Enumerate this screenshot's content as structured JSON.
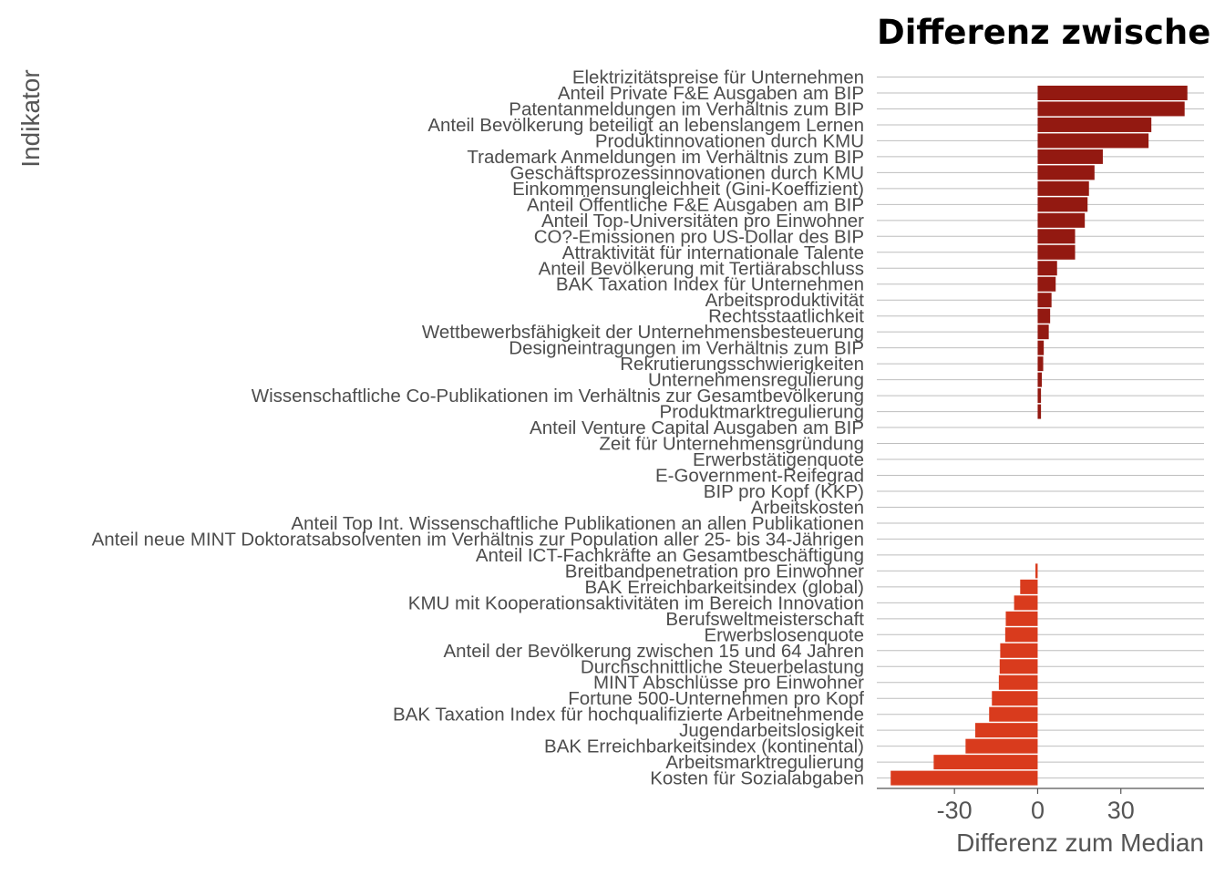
{
  "chart_data": {
    "type": "bar",
    "orientation": "horizontal",
    "title": "Differenz zwische",
    "xlabel": "Differenz zum Median",
    "ylabel": "Indikator",
    "xlim": [
      -58,
      60
    ],
    "xticks": [
      -30,
      0,
      30
    ],
    "xtick_labels": [
      "-30",
      "0",
      "30"
    ],
    "grid": "horizontal lines per category",
    "legend": "none",
    "colors": {
      "positive": "#931911",
      "negative": "#D93B1D",
      "grid": "#BEBEBE",
      "axis": "#555555",
      "label": "#4D4D4D"
    },
    "categories": [
      "Elektrizitätspreise für Unternehmen",
      "Anteil Private F&E Ausgaben am BIP",
      "Patentanmeldungen im Verhältnis zum BIP",
      "Anteil Bevölkerung beteiligt an lebenslangem Lernen",
      "Produktinnovationen durch KMU",
      "Trademark Anmeldungen im Verhältnis zum BIP",
      "Geschäftsprozessinnovationen durch KMU",
      "Einkommensungleichheit (Gini-Koeffizient)",
      "Anteil Öffentliche F&E Ausgaben am BIP",
      "Anteil Top-Universitäten pro Einwohner",
      "CO?-Emissionen pro US-Dollar des BIP",
      "Attraktivität für internationale Talente",
      "Anteil Bevölkerung mit Tertiärabschluss",
      "BAK Taxation Index für Unternehmen",
      "Arbeitsproduktivität",
      "Rechtsstaatlichkeit",
      "Wettbewerbsfähigkeit der Unternehmensbesteuerung",
      "Designeintragungen im Verhältnis zum BIP",
      "Rekrutierungsschwierigkeiten",
      "Unternehmensregulierung",
      "Wissenschaftliche Co-Publikationen im Verhältnis zur Gesamtbevölkerung",
      "Produktmarktregulierung",
      "Anteil Venture Capital Ausgaben am BIP",
      "Zeit für Unternehmensgründung",
      "Erwerbstätigenquote",
      "E-Government-Reifegrad",
      "BIP pro Kopf (KKP)",
      "Arbeitskosten",
      "Anteil Top Int. Wissenschaftliche Publikationen an allen Publikationen",
      "Anteil neue MINT Doktoratsabsolventen im Verhältnis zur Population aller 25- bis 34-Jährigen",
      "Anteil ICT-Fachkräfte an Gesamtbeschäftigung",
      "Breitbandpenetration pro Einwohner",
      "BAK Erreichbarkeitsindex (global)",
      "KMU mit Kooperationsaktivitäten im Bereich Innovation",
      "Berufsweltmeisterschaft",
      "Erwerbslosenquote",
      "Anteil der Bevölkerung zwischen 15 und 64 Jahren",
      "Durchschnittliche Steuerbelastung",
      "MINT Abschlüsse pro Einwohner",
      "Fortune 500-Unternehmen pro Kopf",
      "BAK Taxation Index für hochqualifizierte Arbeitnehmende",
      "Jugendarbeitslosigkeit",
      "BAK Erreichbarkeitsindex (kontinental)",
      "Arbeitsmarktregulierung",
      "Kosten für Sozialabgaben"
    ],
    "values": [
      0,
      54,
      53,
      41,
      40,
      23.5,
      20.5,
      18.5,
      18,
      17,
      13.5,
      13.5,
      7,
      6.5,
      5,
      4.5,
      4,
      2.2,
      2,
      1.5,
      1.2,
      1.2,
      0,
      0,
      0,
      0,
      0,
      0,
      0,
      0,
      0,
      -0.8,
      -6.3,
      -8.5,
      -11.5,
      -11.7,
      -13.5,
      -13.7,
      -14,
      -16.5,
      -17.5,
      -22.5,
      -26,
      -37.5,
      -53
    ]
  }
}
